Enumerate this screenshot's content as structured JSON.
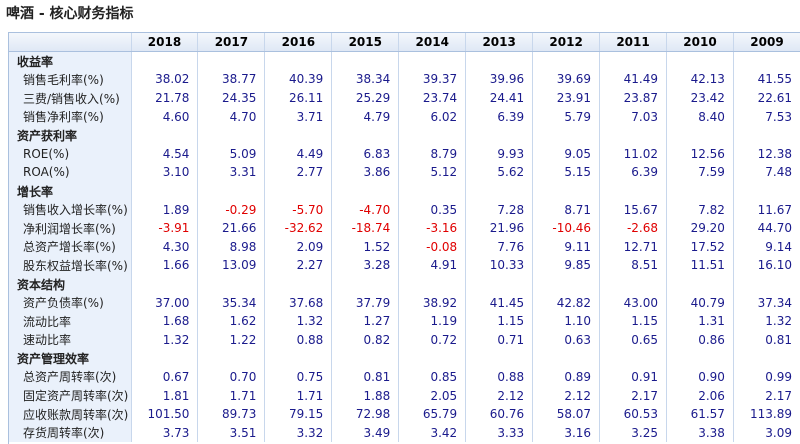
{
  "header": {
    "title": "啤酒 - 核心财务指标"
  },
  "table": {
    "columns": [
      "2018",
      "2017",
      "2016",
      "2015",
      "2014",
      "2013",
      "2012",
      "2011",
      "2010",
      "2009"
    ],
    "sections": [
      {
        "name": "收益率",
        "rows": [
          {
            "label": "销售毛利率(%)",
            "values": [
              "38.02",
              "38.77",
              "40.39",
              "38.34",
              "39.37",
              "39.96",
              "39.69",
              "41.49",
              "42.13",
              "41.55"
            ]
          },
          {
            "label": "三费/销售收入(%)",
            "values": [
              "21.78",
              "24.35",
              "26.11",
              "25.29",
              "23.74",
              "24.41",
              "23.91",
              "23.87",
              "23.42",
              "22.61"
            ]
          },
          {
            "label": "销售净利率(%)",
            "values": [
              "4.60",
              "4.70",
              "3.71",
              "4.79",
              "6.02",
              "6.39",
              "5.79",
              "7.03",
              "8.40",
              "7.53"
            ]
          }
        ]
      },
      {
        "name": "资产获利率",
        "rows": [
          {
            "label": "ROE(%)",
            "values": [
              "4.54",
              "5.09",
              "4.49",
              "6.83",
              "8.79",
              "9.93",
              "9.05",
              "11.02",
              "12.56",
              "12.38"
            ]
          },
          {
            "label": "ROA(%)",
            "values": [
              "3.10",
              "3.31",
              "2.77",
              "3.86",
              "5.12",
              "5.62",
              "5.15",
              "6.39",
              "7.59",
              "7.48"
            ]
          }
        ]
      },
      {
        "name": "增长率",
        "rows": [
          {
            "label": "销售收入增长率(%)",
            "values": [
              "1.89",
              "-0.29",
              "-5.70",
              "-4.70",
              "0.35",
              "7.28",
              "8.71",
              "15.67",
              "7.82",
              "11.67"
            ]
          },
          {
            "label": "净利润增长率(%)",
            "values": [
              "-3.91",
              "21.66",
              "-32.62",
              "-18.74",
              "-3.16",
              "21.96",
              "-10.46",
              "-2.68",
              "29.20",
              "44.70"
            ]
          },
          {
            "label": "总资产增长率(%)",
            "values": [
              "4.30",
              "8.98",
              "2.09",
              "1.52",
              "-0.08",
              "7.76",
              "9.11",
              "12.71",
              "17.52",
              "9.14"
            ]
          },
          {
            "label": "股东权益增长率(%)",
            "values": [
              "1.66",
              "13.09",
              "2.27",
              "3.28",
              "4.91",
              "10.33",
              "9.85",
              "8.51",
              "11.51",
              "16.10"
            ]
          }
        ]
      },
      {
        "name": "资本结构",
        "rows": [
          {
            "label": "资产负债率(%)",
            "values": [
              "37.00",
              "35.34",
              "37.68",
              "37.79",
              "38.92",
              "41.45",
              "42.82",
              "43.00",
              "40.79",
              "37.34"
            ]
          },
          {
            "label": "流动比率",
            "values": [
              "1.68",
              "1.62",
              "1.32",
              "1.27",
              "1.19",
              "1.15",
              "1.10",
              "1.15",
              "1.31",
              "1.32"
            ]
          },
          {
            "label": "速动比率",
            "values": [
              "1.32",
              "1.22",
              "0.88",
              "0.82",
              "0.72",
              "0.71",
              "0.63",
              "0.65",
              "0.86",
              "0.81"
            ]
          }
        ]
      },
      {
        "name": "资产管理效率",
        "rows": [
          {
            "label": "总资产周转率(次)",
            "values": [
              "0.67",
              "0.70",
              "0.75",
              "0.81",
              "0.85",
              "0.88",
              "0.89",
              "0.91",
              "0.90",
              "0.99"
            ]
          },
          {
            "label": "固定资产周转率(次)",
            "values": [
              "1.81",
              "1.71",
              "1.71",
              "1.88",
              "2.05",
              "2.12",
              "2.12",
              "2.17",
              "2.06",
              "2.17"
            ]
          },
          {
            "label": "应收账款周转率(次)",
            "values": [
              "101.50",
              "89.73",
              "79.15",
              "72.98",
              "65.79",
              "60.76",
              "58.07",
              "60.53",
              "61.57",
              "113.89"
            ]
          },
          {
            "label": "存货周转率(次)",
            "values": [
              "3.73",
              "3.51",
              "3.32",
              "3.49",
              "3.42",
              "3.33",
              "3.16",
              "3.25",
              "3.38",
              "3.09"
            ]
          }
        ]
      }
    ]
  }
}
